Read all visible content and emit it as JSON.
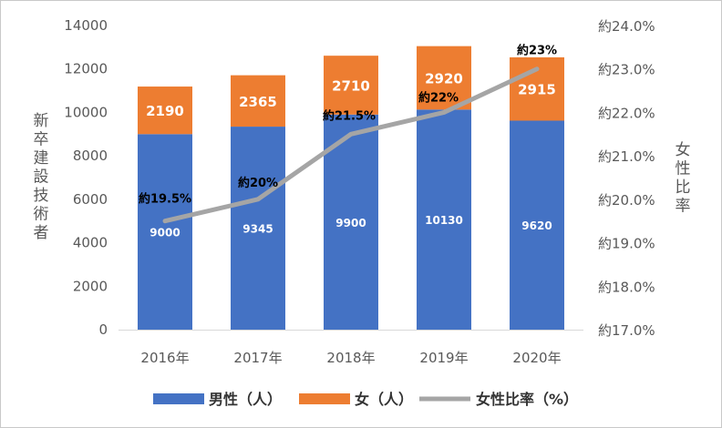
{
  "chart_data": {
    "type": "bar",
    "stacked": true,
    "categories": [
      "2016年",
      "2017年",
      "2018年",
      "2019年",
      "2020年"
    ],
    "series": [
      {
        "name": "男性（人）",
        "values": [
          9000,
          9345,
          9900,
          10130,
          9620
        ],
        "color": "#4472C4",
        "axis": "left"
      },
      {
        "name": "女（人）",
        "values": [
          2190,
          2365,
          2710,
          2920,
          2915
        ],
        "color": "#ED7D31",
        "axis": "left"
      },
      {
        "name": "女性比率（%）",
        "type": "line",
        "values": [
          19.5,
          20,
          21.5,
          22,
          23
        ],
        "color": "#A5A5A5",
        "axis": "right",
        "labels": [
          "約19.5%",
          "約20%",
          "約21.5%",
          "約22%",
          "約23%"
        ]
      }
    ],
    "ylabel": "新卒建設技術者",
    "y2label": "女性比率",
    "ylim": [
      0,
      14000
    ],
    "yticks": [
      "0",
      "2000",
      "4000",
      "6000",
      "8000",
      "10000",
      "12000",
      "14000"
    ],
    "y2lim": [
      17,
      24
    ],
    "y2ticks": [
      "約17.0%",
      "約18.0%",
      "約19.0%",
      "約20.0%",
      "約21.0%",
      "約22.0%",
      "約23.0%",
      "約24.0%"
    ],
    "grid": false,
    "legend": "bottom"
  }
}
